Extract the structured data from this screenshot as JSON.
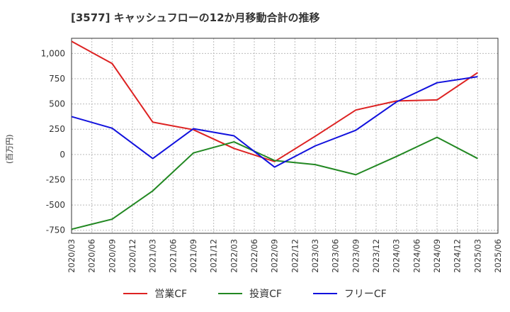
{
  "chart_data": {
    "type": "line",
    "title": "[3577]  キャッシュフローの12か月移動合計の推移",
    "ylabel": "(百万円)",
    "xlabel": "",
    "ylim": [
      -780,
      1150
    ],
    "yticks": [
      -750,
      -500,
      -250,
      0,
      250,
      500,
      750,
      1000
    ],
    "ytick_labels": [
      "-750",
      "-500",
      "-250",
      "0",
      "250",
      "500",
      "750",
      "1,000"
    ],
    "x": [
      "2020/03",
      "2020/06",
      "2020/09",
      "2020/12",
      "2021/03",
      "2021/06",
      "2021/09",
      "2021/12",
      "2022/03",
      "2022/06",
      "2022/09",
      "2022/12",
      "2023/03",
      "2023/06",
      "2023/09",
      "2023/12",
      "2024/03",
      "2024/06",
      "2024/09",
      "2024/12",
      "2025/03",
      "2025/06"
    ],
    "series": [
      {
        "name": "営業CF",
        "color": "#dd2222",
        "points": [
          [
            0,
            1120
          ],
          [
            2,
            900
          ],
          [
            4,
            320
          ],
          [
            6,
            245
          ],
          [
            8,
            60
          ],
          [
            10,
            -70
          ],
          [
            12,
            180
          ],
          [
            14,
            440
          ],
          [
            16,
            530
          ],
          [
            18,
            540
          ],
          [
            20,
            810
          ]
        ]
      },
      {
        "name": "投資CF",
        "color": "#228822",
        "points": [
          [
            0,
            -740
          ],
          [
            2,
            -640
          ],
          [
            4,
            -360
          ],
          [
            6,
            15
          ],
          [
            8,
            125
          ],
          [
            10,
            -60
          ],
          [
            12,
            -100
          ],
          [
            14,
            -200
          ],
          [
            16,
            -20
          ],
          [
            18,
            170
          ],
          [
            20,
            -40
          ]
        ]
      },
      {
        "name": "フリーCF",
        "color": "#1111dd",
        "points": [
          [
            0,
            375
          ],
          [
            2,
            260
          ],
          [
            4,
            -40
          ],
          [
            6,
            255
          ],
          [
            8,
            185
          ],
          [
            10,
            -125
          ],
          [
            12,
            85
          ],
          [
            14,
            240
          ],
          [
            16,
            520
          ],
          [
            18,
            710
          ],
          [
            20,
            770
          ]
        ]
      }
    ],
    "grid": true,
    "legend_position": "bottom"
  }
}
